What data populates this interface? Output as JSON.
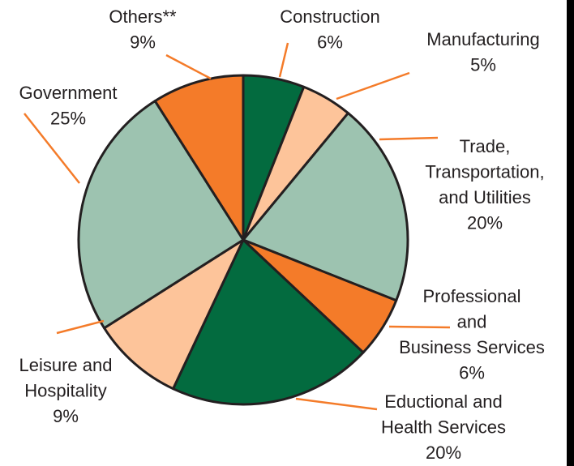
{
  "chart_data": {
    "type": "pie",
    "categories": [
      [
        "Construction"
      ],
      [
        "Manufacturing"
      ],
      [
        "Trade,",
        "Transportation,",
        "and Utilities"
      ],
      [
        "Professional",
        "and",
        "Business Services"
      ],
      [
        "Eductional and",
        "Health Services"
      ],
      [
        "Leisure and",
        "Hospitality"
      ],
      [
        "Government"
      ],
      [
        "Others**"
      ]
    ],
    "values": [
      6,
      5,
      20,
      6,
      20,
      9,
      25,
      9
    ],
    "value_labels": [
      "6%",
      "5%",
      "20%",
      "6%",
      "20%",
      "9%",
      "25%",
      "9%"
    ],
    "colors": [
      "#036b3f",
      "#fdc49a",
      "#9dc3b0",
      "#f47b29",
      "#036b3f",
      "#fdc49a",
      "#9dc3b0",
      "#f47b29"
    ]
  }
}
